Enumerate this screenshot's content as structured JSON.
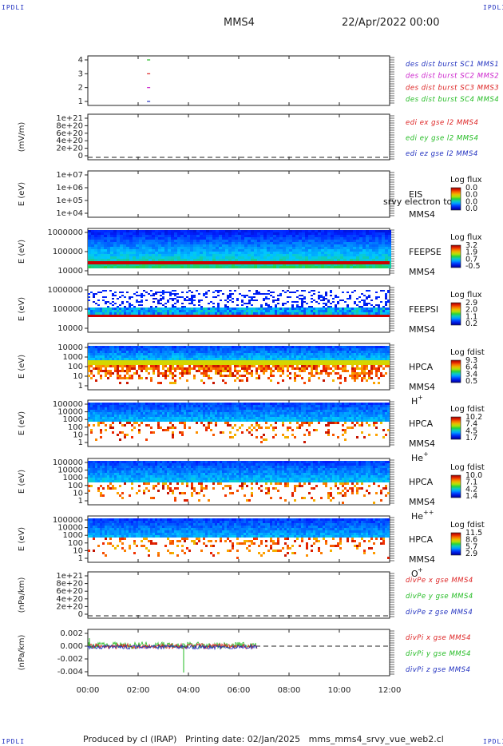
{
  "corners": {
    "label": "IPDLI"
  },
  "header": {
    "spacecraft": "MMS4",
    "date": "22/Apr/2022 00:00"
  },
  "footer": {
    "produced_by": "Produced by cl (IRAP)",
    "printing_date": "Printing date: 02/Jan/2025",
    "file": "mms_mms4_srvy_vue_web2.cl"
  },
  "chart_data": [
    {
      "type": "scatter",
      "title": "",
      "ylabel": "",
      "yticks": [
        "4",
        "3",
        "2",
        "1"
      ],
      "legend": [
        {
          "text": "des dist burst SC1 MMS1",
          "color": "#1f2fbf"
        },
        {
          "text": "des dist burst SC2 MMS2",
          "color": "#cc22cc"
        },
        {
          "text": "des dist burst SC3 MMS3",
          "color": "#dd2222"
        },
        {
          "text": "des dist burst SC4 MMS4",
          "color": "#22bb22"
        }
      ],
      "series": [
        {
          "name": "des dist burst SC1 MMS1",
          "x": [
            "02:25"
          ],
          "y": [
            1
          ]
        },
        {
          "name": "des dist burst SC2 MMS2",
          "x": [
            "02:25"
          ],
          "y": [
            2
          ]
        },
        {
          "name": "des dist burst SC3 MMS3",
          "x": [
            "02:25"
          ],
          "y": [
            3
          ]
        },
        {
          "name": "des dist burst SC4 MMS4",
          "x": [
            "02:25"
          ],
          "y": [
            4
          ]
        }
      ]
    },
    {
      "type": "line",
      "ylabel": "(mV/m)",
      "yticks": [
        "1e+21",
        "8e+20",
        "6e+20",
        "4e+20",
        "2e+20",
        "0"
      ],
      "legend": [
        {
          "text": "edi ex gse l2 MMS4",
          "color": "#dd2222"
        },
        {
          "text": "edi ey gse l2 MMS4",
          "color": "#22bb22"
        },
        {
          "text": "edi ez gse l2 MMS4",
          "color": "#1f2fbf"
        }
      ]
    },
    {
      "type": "heatmap",
      "ylabel": "E (eV)",
      "yticks": [
        "1e+07",
        "1e+06",
        "1e+05",
        "1e+04"
      ],
      "instrument": "EIS",
      "sublabel": "srvy electron to",
      "sc": "MMS4",
      "colorbar": {
        "label": "Log flux",
        "ticks": [
          "0.0",
          "0.0",
          "0.0",
          "0.0"
        ]
      }
    },
    {
      "type": "heatmap",
      "ylabel": "E (eV)",
      "yticks": [
        "1000000",
        "100000",
        "10000"
      ],
      "instrument": "FEEPSE",
      "sc": "MMS4",
      "colorbar": {
        "label": "Log flux",
        "ticks": [
          "3.2",
          "1.9",
          "0.7",
          "-0.5"
        ]
      }
    },
    {
      "type": "heatmap",
      "ylabel": "E (eV)",
      "yticks": [
        "1000000",
        "100000",
        "10000"
      ],
      "instrument": "FEEPSI",
      "sc": "MMS4",
      "colorbar": {
        "label": "Log flux",
        "ticks": [
          "2.9",
          "2.0",
          "1.1",
          "0.2"
        ]
      }
    },
    {
      "type": "heatmap",
      "ylabel": "E (eV)",
      "yticks": [
        "10000",
        "1000",
        "100",
        "10",
        "1"
      ],
      "instrument": "HPCA",
      "sc": "MMS4",
      "species": "H",
      "charge": "+",
      "colorbar": {
        "label": "Log fdist",
        "ticks": [
          "9.3",
          "6.4",
          "3.4",
          "0.5"
        ]
      }
    },
    {
      "type": "heatmap",
      "ylabel": "E (eV)",
      "yticks": [
        "100000",
        "10000",
        "1000",
        "100",
        "10",
        "1"
      ],
      "instrument": "HPCA",
      "sc": "MMS4",
      "species": "He",
      "charge": "+",
      "colorbar": {
        "label": "Log fdist",
        "ticks": [
          "10.2",
          "7.4",
          "4.5",
          "1.7"
        ]
      }
    },
    {
      "type": "heatmap",
      "ylabel": "E (eV)",
      "yticks": [
        "100000",
        "10000",
        "1000",
        "100",
        "10",
        "1"
      ],
      "instrument": "HPCA",
      "sc": "MMS4",
      "species": "He",
      "charge": "++",
      "colorbar": {
        "label": "Log fdist",
        "ticks": [
          "10.0",
          "7.1",
          "4.2",
          "1.4"
        ]
      }
    },
    {
      "type": "heatmap",
      "ylabel": "E (eV)",
      "yticks": [
        "100000",
        "10000",
        "1000",
        "100",
        "10",
        "1"
      ],
      "instrument": "HPCA",
      "sc": "MMS4",
      "species": "O",
      "charge": "+",
      "colorbar": {
        "label": "Log fdist",
        "ticks": [
          "11.5",
          "8.6",
          "5.7",
          "2.9"
        ]
      }
    },
    {
      "type": "line",
      "ylabel": "(nPa/km)",
      "yticks": [
        "1e+21",
        "8e+20",
        "6e+20",
        "4e+20",
        "2e+20",
        "0"
      ],
      "legend": [
        {
          "text": "divPe x gse MMS4",
          "color": "#dd2222"
        },
        {
          "text": "divPe y gse MMS4",
          "color": "#22bb22"
        },
        {
          "text": "divPe z gse MMS4",
          "color": "#1f2fbf"
        }
      ]
    },
    {
      "type": "line",
      "ylabel": "(nPa/km)",
      "yticks": [
        "0.002",
        "0.000",
        "-0.002",
        "-0.004"
      ],
      "ylim": [
        -0.005,
        0.003
      ],
      "legend": [
        {
          "text": "divPi x gse MMS4",
          "color": "#dd2222"
        },
        {
          "text": "divPi y gse MMS4",
          "color": "#22bb22"
        },
        {
          "text": "divPi z gse MMS4",
          "color": "#1f2fbf"
        }
      ],
      "xlim": [
        "00:00",
        "12:00"
      ],
      "data_end": "06:45"
    }
  ],
  "xaxis": {
    "ticks": [
      "00:00",
      "02:00",
      "04:00",
      "06:00",
      "08:00",
      "10:00",
      "12:00"
    ]
  }
}
